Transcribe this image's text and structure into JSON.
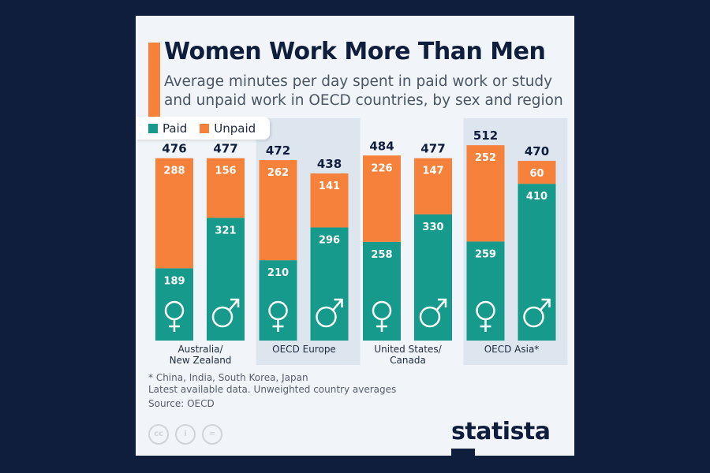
{
  "title": "Women Work More Than Men",
  "subtitle": "Average minutes per day spent in paid work or study and unpaid work in OECD countries, by sex and region",
  "legend": {
    "paid": "Paid",
    "unpaid": "Unpaid"
  },
  "colors": {
    "paid": "#169a8b",
    "unpaid": "#f6813b",
    "band": "#dde5ee"
  },
  "chart_data": {
    "type": "bar",
    "stacked": true,
    "categories": [
      "Australia/ New Zealand",
      "OECD Europe",
      "United States/ Canada",
      "OECD Asia*"
    ],
    "groups": [
      "Women",
      "Men"
    ],
    "series": [
      {
        "name": "Paid",
        "values": [
          [
            189,
            321
          ],
          [
            210,
            296
          ],
          [
            258,
            330
          ],
          [
            259,
            410
          ]
        ]
      },
      {
        "name": "Unpaid",
        "values": [
          [
            288,
            156
          ],
          [
            262,
            141
          ],
          [
            226,
            147
          ],
          [
            252,
            60
          ]
        ]
      }
    ],
    "totals": [
      [
        476,
        477
      ],
      [
        472,
        438
      ],
      [
        484,
        477
      ],
      [
        512,
        470
      ]
    ],
    "category_lines": [
      [
        "Australia/",
        "New Zealand"
      ],
      [
        "OECD Europe"
      ],
      [
        "United States/",
        "Canada"
      ],
      [
        "OECD Asia*"
      ]
    ]
  },
  "notes": [
    "* China, India, South Korea, Japan",
    "Latest available data. Unweighted country averages",
    "Source: OECD"
  ],
  "logo": "statista"
}
